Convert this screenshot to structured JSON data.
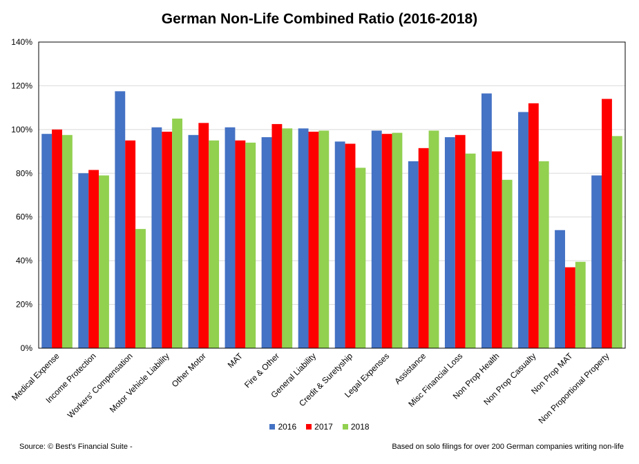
{
  "chart_data": {
    "type": "bar",
    "title": "German Non-Life Combined Ratio (2016-2018)",
    "categories": [
      "Medical Expense",
      "Income Protection",
      "Workers' Compensation",
      "Motor Vehicle Liability",
      "Other Motor",
      "MAT",
      "Fire & Other",
      "General Liability",
      "Credit & Suretyship",
      "Legal Expenses",
      "Assistance",
      "Misc Financial Loss",
      "Non Prop Health",
      "Non Prop Casualty",
      "Non Prop MAT",
      "Non Proportional Property"
    ],
    "series": [
      {
        "name": "2016",
        "color": "#4472C4",
        "values": [
          98,
          80,
          117.5,
          101,
          97.5,
          101,
          96.5,
          100.5,
          94.5,
          99.5,
          85.5,
          96.5,
          116.5,
          108,
          54,
          79
        ]
      },
      {
        "name": "2017",
        "color": "#FF0000",
        "values": [
          100,
          81.5,
          95,
          99,
          103,
          95,
          102.5,
          99,
          93.5,
          98,
          91.5,
          97.5,
          90,
          112,
          37,
          114
        ]
      },
      {
        "name": "2018",
        "color": "#92D050",
        "values": [
          97.5,
          79,
          54.5,
          105,
          95,
          94,
          100.5,
          99.5,
          82.5,
          98.5,
          99.5,
          89,
          77,
          85.5,
          39.5,
          97
        ]
      }
    ],
    "ylim": [
      0,
      140
    ],
    "yticks": [
      "0%",
      "20%",
      "40%",
      "60%",
      "80%",
      "100%",
      "120%",
      "140%"
    ],
    "grid": true,
    "legend_position": "bottom"
  },
  "footer": {
    "source": "Source: © Best's Financial Suite -",
    "note": "Based on solo filings for over 200 German companies writing non-life"
  }
}
